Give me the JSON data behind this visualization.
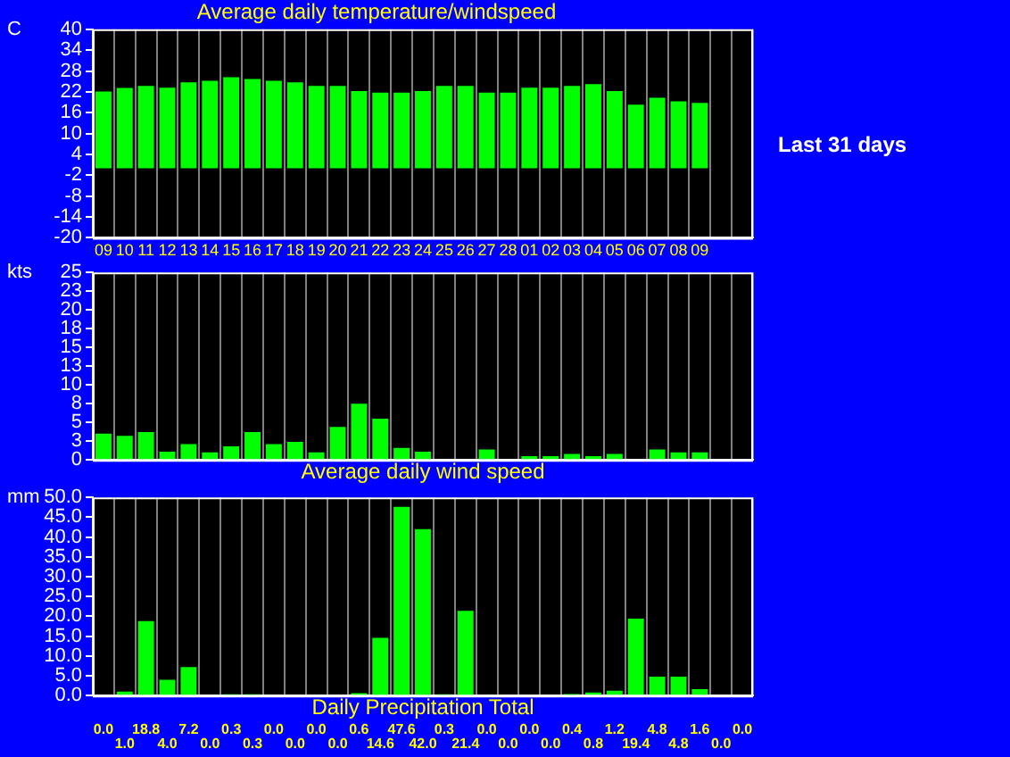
{
  "chart_data": [
    {
      "type": "bar",
      "title": "Average daily temperature/windspeed",
      "ylabel": "C",
      "annotations": [
        "Last 31 days"
      ],
      "categories": [
        "09",
        "10",
        "11",
        "12",
        "13",
        "14",
        "15",
        "16",
        "17",
        "18",
        "19",
        "20",
        "21",
        "22",
        "23",
        "24",
        "25",
        "26",
        "27",
        "28",
        "01",
        "02",
        "03",
        "04",
        "05",
        "06",
        "07",
        "08",
        "09",
        null,
        null
      ],
      "values": [
        22.1,
        23.1,
        23.7,
        23.2,
        24.7,
        25.2,
        26.2,
        25.7,
        25.2,
        24.7,
        23.7,
        23.7,
        22.2,
        21.8,
        21.8,
        22.2,
        23.7,
        23.7,
        21.8,
        21.8,
        23.2,
        23.2,
        23.7,
        24.2,
        22.2,
        18.3,
        20.3,
        19.3,
        18.8,
        null,
        null
      ],
      "color": "#00ff00",
      "ylim": [
        -20,
        40
      ],
      "yticks": [
        -20,
        -14,
        -8,
        -2,
        4,
        10,
        16,
        22,
        28,
        34,
        40
      ],
      "grid": "x"
    },
    {
      "type": "bar",
      "xlabel": "Average daily wind speed",
      "ylabel": "kts",
      "tick_labels": "y",
      "categories": [
        "09",
        "10",
        "11",
        "12",
        "13",
        "14",
        "15",
        "16",
        "17",
        "18",
        "19",
        "20",
        "21",
        "22",
        "23",
        "24",
        "25",
        "26",
        "27",
        "28",
        "01",
        "02",
        "03",
        "04",
        "05",
        "06",
        "07",
        "08",
        "09",
        null,
        null
      ],
      "values": [
        3.5,
        3.2,
        3.7,
        1.1,
        2.1,
        1.0,
        1.8,
        3.7,
        2.1,
        2.4,
        1.0,
        4.4,
        7.5,
        5.5,
        1.6,
        1.1,
        0,
        0,
        1.4,
        0,
        0.5,
        0.5,
        0.8,
        0.5,
        0.8,
        0,
        1.4,
        1.0,
        1.0,
        null,
        null
      ],
      "color": "#00ff00",
      "ylim": [
        0,
        25
      ],
      "yticks": [
        0,
        {
          "value": 2.5,
          "label": "3"
        },
        5,
        {
          "value": 7.5,
          "label": "8"
        },
        10,
        {
          "value": 12.5,
          "label": "13"
        },
        15,
        {
          "value": 17.5,
          "label": "18"
        },
        20,
        {
          "value": 22.5,
          "label": "23"
        },
        25
      ],
      "grid": "x"
    },
    {
      "type": "bar",
      "xlabel": "Daily Precipitation Total",
      "ylabel": "mm",
      "tick_labels": "y",
      "categories": [
        "09",
        "10",
        "11",
        "12",
        "13",
        "14",
        "15",
        "16",
        "17",
        "18",
        "19",
        "20",
        "21",
        "22",
        "23",
        "24",
        "25",
        "26",
        "27",
        "28",
        "01",
        "02",
        "03",
        "04",
        "05",
        "06",
        "07",
        "08",
        "09",
        null,
        null
      ],
      "values": [
        0,
        1.0,
        18.8,
        4.0,
        7.2,
        0,
        0.3,
        0.3,
        0,
        0,
        0,
        0,
        0.6,
        14.6,
        47.6,
        42.0,
        0.3,
        21.4,
        0,
        0,
        0,
        0,
        0.4,
        0.8,
        1.2,
        19.4,
        4.8,
        4.8,
        1.6,
        0,
        0
      ],
      "value_labels": [
        "0.0",
        "1.0",
        "18.8",
        "4.0",
        "7.2",
        "0.0",
        "0.3",
        "0.3",
        "0.0",
        "0.0",
        "0.0",
        "0.0",
        "0.6",
        "14.6",
        "47.6",
        "42.0",
        "0.3",
        "21.4",
        "0.0",
        "0.0",
        "0.0",
        "0.0",
        "0.4",
        "0.8",
        "1.2",
        "19.4",
        "4.8",
        "4.8",
        "1.6",
        "0.0",
        "0.0"
      ],
      "color": "#00ff00",
      "ylim": [
        0,
        50
      ],
      "yticks": [
        {
          "value": 0,
          "label": "0.0"
        },
        {
          "value": 5,
          "label": "5.0"
        },
        {
          "value": 10,
          "label": "10.0"
        },
        {
          "value": 15,
          "label": "15.0"
        },
        {
          "value": 20,
          "label": "20.0"
        },
        {
          "value": 25,
          "label": "25.0"
        },
        {
          "value": 30,
          "label": "30.0"
        },
        {
          "value": 35,
          "label": "35.0"
        },
        {
          "value": 40,
          "label": "40.0"
        },
        {
          "value": 45,
          "label": "45.0"
        },
        {
          "value": 50,
          "label": "50.0"
        }
      ],
      "grid": "x"
    }
  ]
}
